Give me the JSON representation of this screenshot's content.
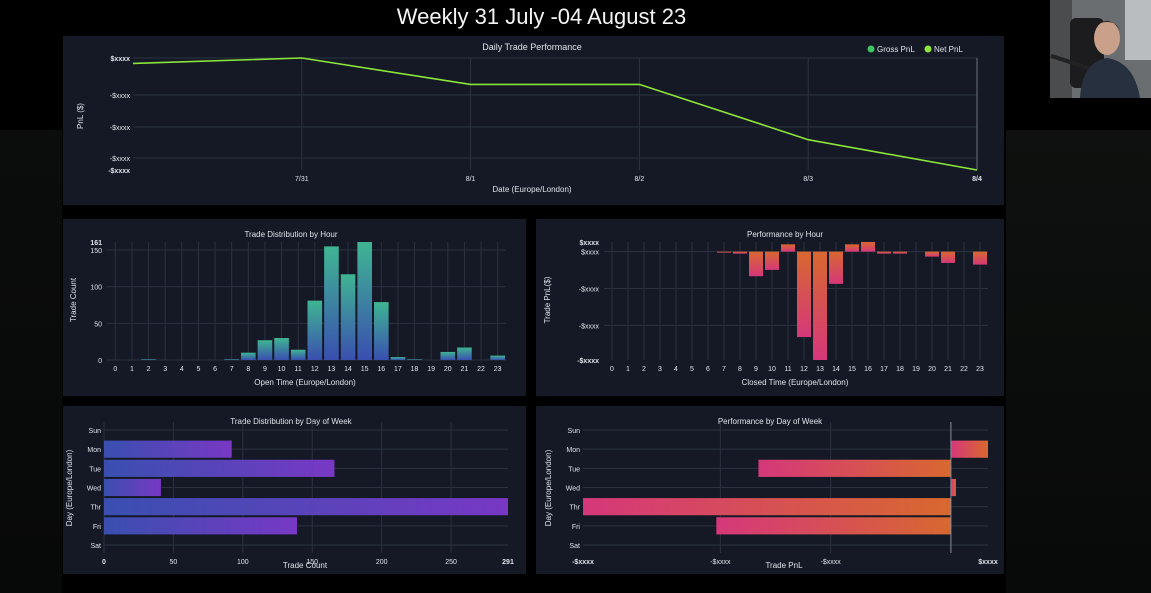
{
  "page": {
    "title": "Weekly 31 July -04 August 23"
  },
  "colors": {
    "background": "#000000",
    "panel": "#141925",
    "grid": "#2c3140",
    "gross_line": "#41c463",
    "net_line": "#8ce53a",
    "teal": "#3fb592",
    "blue": "#3a4fb0",
    "purple": "#7838c4",
    "pink": "#d5387a",
    "orange": "#d8682f"
  },
  "chart_data": [
    {
      "id": "daily",
      "type": "line",
      "title": "Daily Trade Performance",
      "xlabel": "Date (Europe/London)",
      "ylabel": "PnL ($)",
      "x": [
        "7/31",
        "8/1",
        "8/2",
        "8/3",
        "8/4"
      ],
      "y_ticks": [
        "$xxxx",
        "-$xxxx",
        "-$xxxx",
        "-$xxxx",
        "-$xxxx"
      ],
      "legend": {
        "position": "top-right",
        "items": [
          "Gross PnL",
          "Net PnL"
        ]
      },
      "series": [
        {
          "name": "Net PnL",
          "x": [
            "7/30",
            "7/31",
            "8/1",
            "8/2",
            "8/3",
            "8/4"
          ],
          "values": [
            -0.15,
            0,
            -0.73,
            -0.73,
            -2.26,
            -3.1
          ]
        }
      ],
      "ylim": [
        -3.1,
        0
      ],
      "grid": true
    },
    {
      "id": "dist_hour",
      "type": "bar",
      "title": "Trade Distribution by Hour",
      "xlabel": "Open Time (Europe/London)",
      "ylabel": "Trade Count",
      "categories": [
        "0",
        "1",
        "2",
        "3",
        "4",
        "5",
        "6",
        "7",
        "8",
        "9",
        "10",
        "11",
        "12",
        "13",
        "14",
        "15",
        "16",
        "17",
        "18",
        "19",
        "20",
        "21",
        "22",
        "23"
      ],
      "values": [
        0,
        0,
        1,
        0,
        0,
        0,
        0,
        1,
        10,
        27,
        30,
        14,
        81,
        155,
        117,
        161,
        79,
        4,
        1,
        0,
        11,
        17,
        0,
        6
      ],
      "y_ticks": [
        "0",
        "50",
        "100",
        "150",
        "161"
      ],
      "ylim": [
        0,
        161
      ],
      "grid": true
    },
    {
      "id": "perf_hour",
      "type": "bar",
      "title": "Performance by Hour",
      "xlabel": "Closed Time (Europe/London)",
      "ylabel": "Trade PnL($)",
      "categories": [
        "0",
        "1",
        "2",
        "3",
        "4",
        "5",
        "6",
        "7",
        "8",
        "9",
        "10",
        "11",
        "12",
        "13",
        "14",
        "15",
        "16",
        "17",
        "18",
        "19",
        "20",
        "21",
        "22",
        "23"
      ],
      "values": [
        0,
        0,
        0,
        0,
        0,
        0,
        0,
        -0.3,
        -0.6,
        -7.4,
        -5.5,
        2.2,
        -25.7,
        -32.6,
        -9.7,
        2.2,
        2.9,
        -0.6,
        -0.6,
        0,
        -1.5,
        -3.4,
        0,
        -3.9
      ],
      "y_ticks": [
        "$xxxx",
        "$xxxx",
        "-$xxxx",
        "-$xxxx",
        "-$xxxx"
      ],
      "ylim": [
        -32.6,
        2.9
      ],
      "grid": true
    },
    {
      "id": "dist_dow",
      "type": "bar",
      "orientation": "horizontal",
      "title": "Trade Distribution by Day of Week",
      "xlabel": "Trade Count",
      "ylabel": "Day (Europe/London)",
      "categories": [
        "Sun",
        "Mon",
        "Tue",
        "Wed",
        "Thr",
        "Fri",
        "Sat"
      ],
      "values": [
        0,
        92,
        166,
        41,
        291,
        139,
        0
      ],
      "x_ticks": [
        "0",
        "50",
        "100",
        "150",
        "200",
        "250",
        "291"
      ],
      "xlim": [
        0,
        291
      ],
      "grid": true
    },
    {
      "id": "perf_dow",
      "type": "bar",
      "orientation": "horizontal",
      "title": "Performance by Day of Week",
      "xlabel": "Trade PnL",
      "ylabel": "Day (Europe/London)",
      "categories": [
        "Sun",
        "Mon",
        "Tue",
        "Wed",
        "Thr",
        "Fri",
        "Sat"
      ],
      "values": [
        0,
        0.37,
        -1.92,
        0.05,
        -3.67,
        -2.34,
        0
      ],
      "x_ticks": [
        "-$xxxx",
        "-$xxxx",
        "-$xxxx",
        "$xxxx"
      ],
      "xlim": [
        -3.67,
        0.37
      ],
      "grid": true
    }
  ]
}
